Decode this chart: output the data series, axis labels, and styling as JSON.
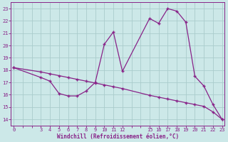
{
  "xlabel": "Windchill (Refroidissement éolien,°C)",
  "bg_color": "#cce8e8",
  "grid_color": "#aacccc",
  "line_color": "#882288",
  "ylim": [
    13.5,
    23.5
  ],
  "xlim": [
    -0.3,
    23.3
  ],
  "yticks": [
    14,
    15,
    16,
    17,
    18,
    19,
    20,
    21,
    22,
    23
  ],
  "xticks_positions": [
    0,
    3,
    4,
    5,
    6,
    7,
    8,
    9,
    10,
    11,
    12,
    15,
    16,
    17,
    18,
    19,
    20,
    21,
    22,
    23
  ],
  "xticks_labels": [
    "0",
    "3",
    "4",
    "5",
    "6",
    "7",
    "8",
    "9",
    "10",
    "11",
    "12",
    "15",
    "16",
    "17",
    "18",
    "19",
    "20",
    "21",
    "22",
    "23"
  ],
  "series1_x": [
    0,
    3,
    4,
    5,
    6,
    7,
    8,
    9,
    10,
    11,
    12,
    15,
    16,
    17,
    18,
    19,
    20,
    21,
    22,
    23
  ],
  "series1_y": [
    18.2,
    17.4,
    17.1,
    16.1,
    15.9,
    15.9,
    16.3,
    17.0,
    20.1,
    21.1,
    17.9,
    22.2,
    21.8,
    23.0,
    22.8,
    21.9,
    17.5,
    16.7,
    15.2,
    14.0
  ],
  "series2_x": [
    0,
    3,
    4,
    5,
    6,
    7,
    8,
    9,
    10,
    11,
    12,
    15,
    16,
    17,
    18,
    19,
    20,
    21,
    22,
    23
  ],
  "series2_y": [
    18.2,
    17.85,
    17.7,
    17.55,
    17.4,
    17.25,
    17.1,
    16.95,
    16.8,
    16.65,
    16.5,
    15.95,
    15.8,
    15.65,
    15.5,
    15.35,
    15.2,
    15.05,
    14.6,
    14.0
  ]
}
